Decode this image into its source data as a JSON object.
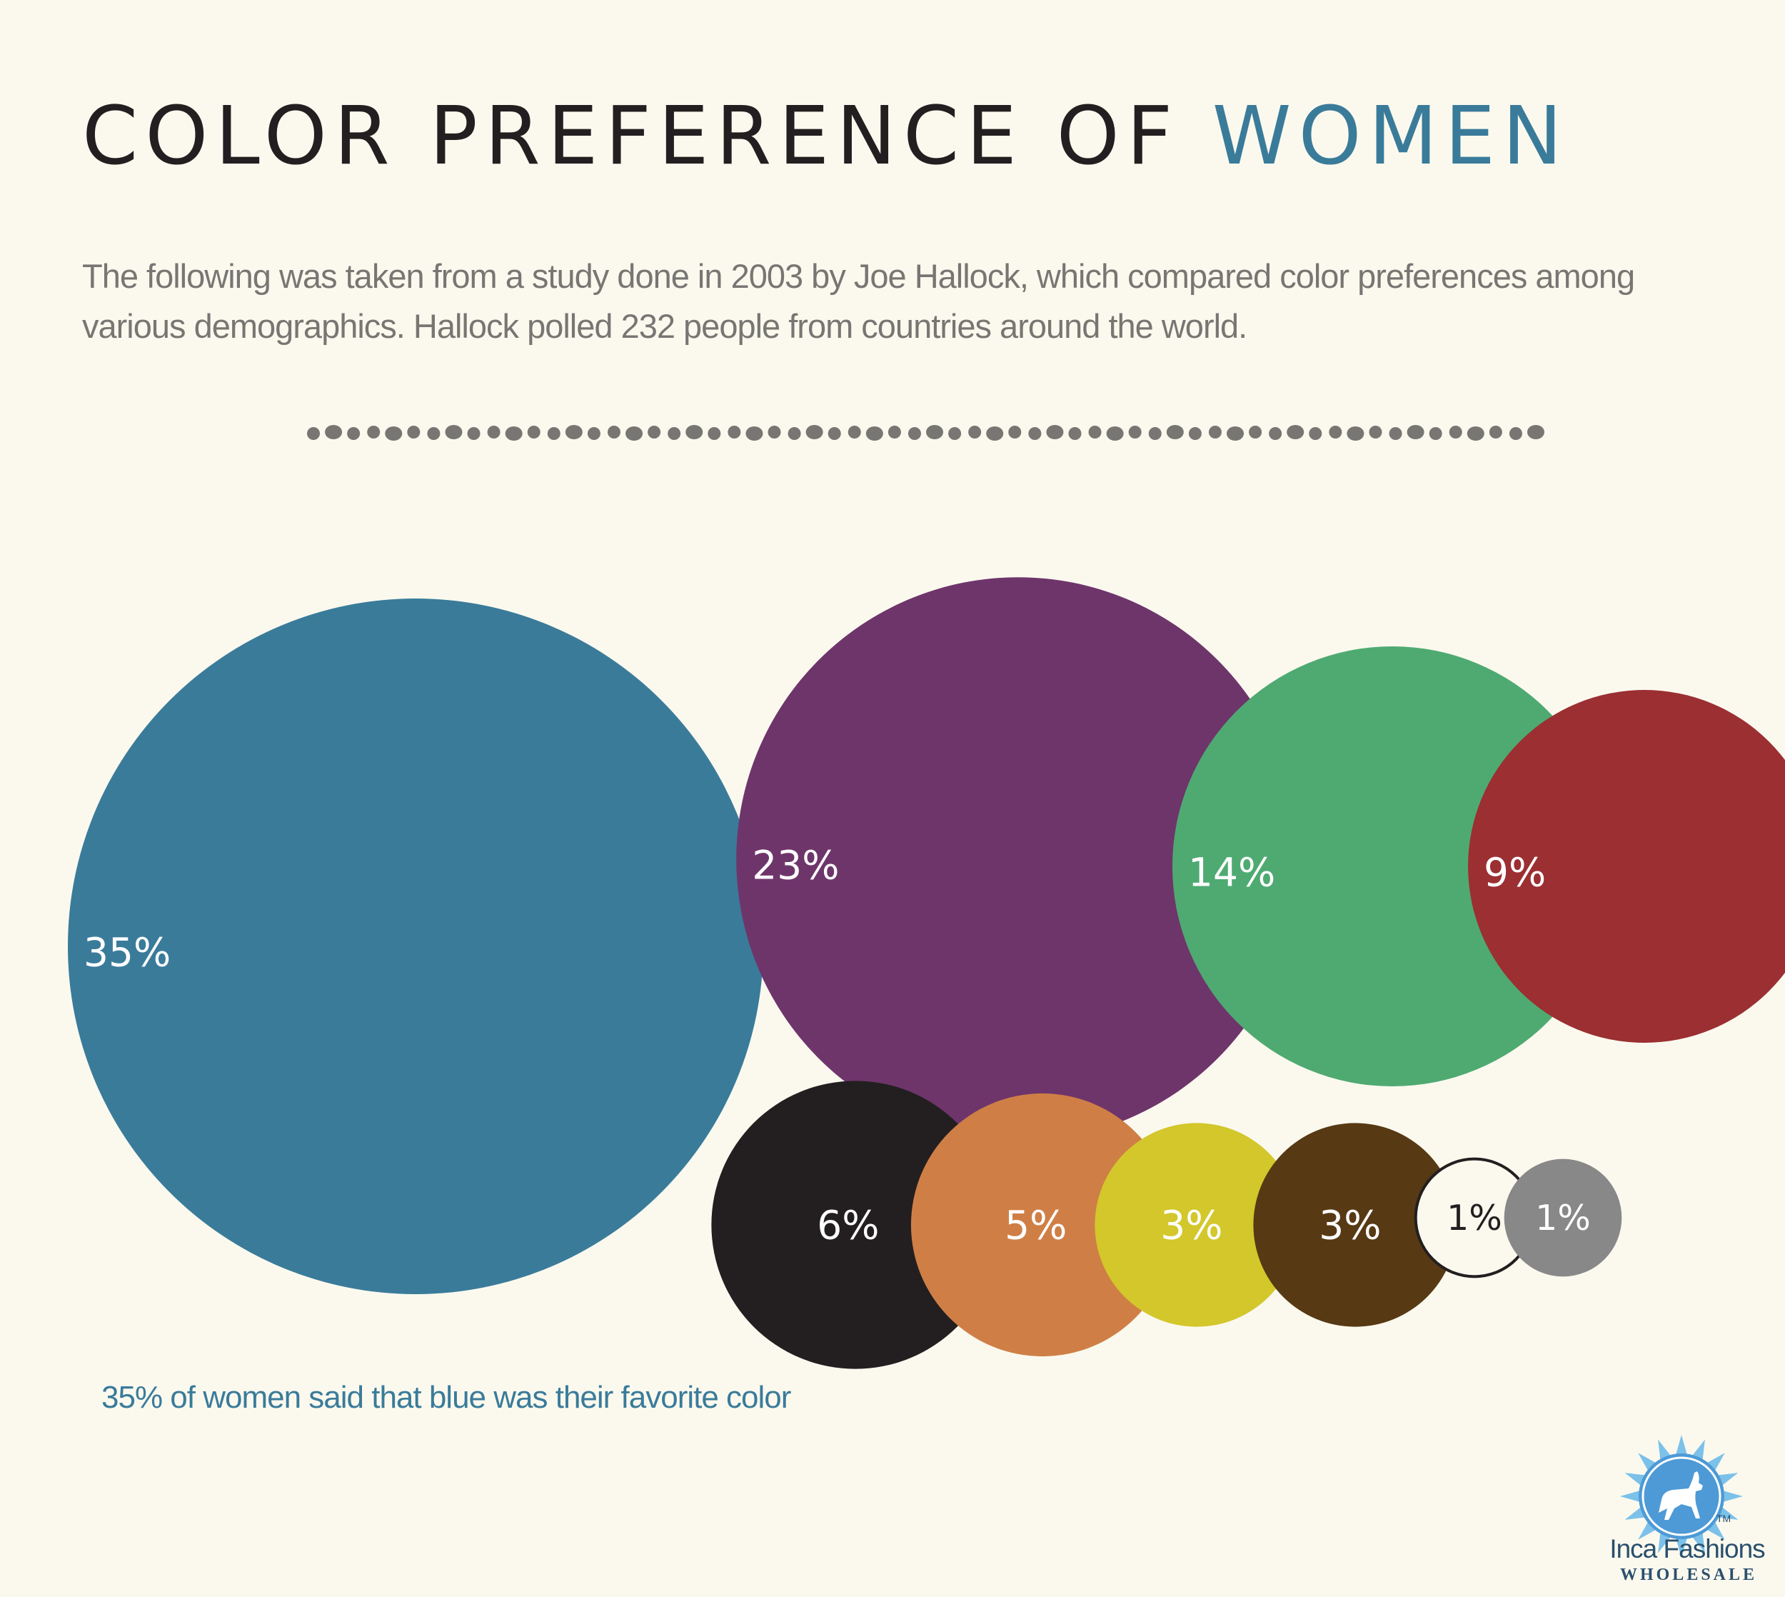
{
  "header": {
    "title_main": "COLOR PREFERENCE OF",
    "title_accent": "WOMEN",
    "subtitle": "The following was taken from a study done in 2003 by Joe Hallock, which compared color preferences among various demographics. Hallock polled 232 people from countries around the world."
  },
  "chart_data": {
    "type": "bubble",
    "title": "COLOR PREFERENCE OF WOMEN",
    "unit": "%",
    "values": [
      35,
      23,
      14,
      9,
      6,
      5,
      3,
      3,
      1,
      1
    ],
    "labels": [
      "35%",
      "23%",
      "14%",
      "9%",
      "6%",
      "5%",
      "3%",
      "3%",
      "1%",
      "1%"
    ],
    "colors": [
      "#3a7b9a",
      "#6e356b",
      "#4faa72",
      "#9b2f32",
      "#231f20",
      "#cf7f46",
      "#d3c72b",
      "#573914",
      "#fbf9ee",
      "#888888"
    ]
  },
  "caption": "35% of women said that blue was their favorite color",
  "logo": {
    "brand": "Inca Fashions",
    "sub": "WHOLESALE",
    "tm": "TM",
    "icon": "llama-sun-icon"
  }
}
